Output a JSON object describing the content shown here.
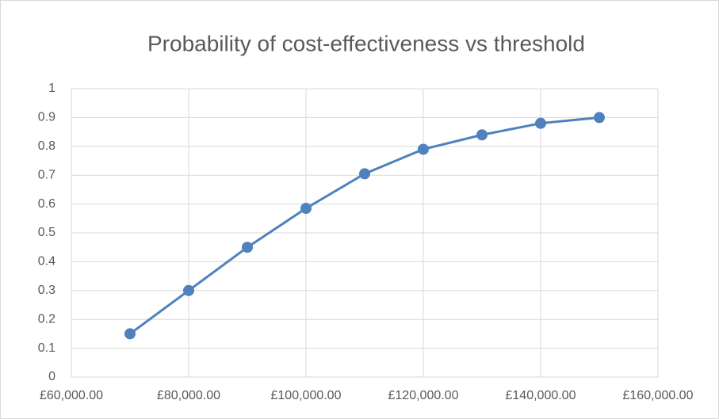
{
  "chart_data": {
    "type": "line",
    "title": "Probability of cost-effectiveness vs threshold",
    "x": [
      70000,
      80000,
      90000,
      100000,
      110000,
      120000,
      130000,
      140000,
      150000
    ],
    "series": [
      {
        "color": "#4f81bd",
        "values": [
          0.15,
          0.3,
          0.45,
          0.585,
          0.705,
          0.79,
          0.84,
          0.88,
          0.9
        ]
      }
    ],
    "xlim": [
      60000,
      160000
    ],
    "xticks": [
      {
        "value": 60000,
        "label": "£60,000.00"
      },
      {
        "value": 80000,
        "label": "£80,000.00"
      },
      {
        "value": 100000,
        "label": "£100,000.00"
      },
      {
        "value": 120000,
        "label": "£120,000.00"
      },
      {
        "value": 140000,
        "label": "£140,000.00"
      },
      {
        "value": 160000,
        "label": "£160,000.00"
      }
    ],
    "ylim": [
      0,
      1
    ],
    "yticks": [
      0,
      0.1,
      0.2,
      0.3,
      0.4,
      0.5,
      0.6,
      0.7,
      0.8,
      0.9,
      1
    ],
    "grid": true
  }
}
